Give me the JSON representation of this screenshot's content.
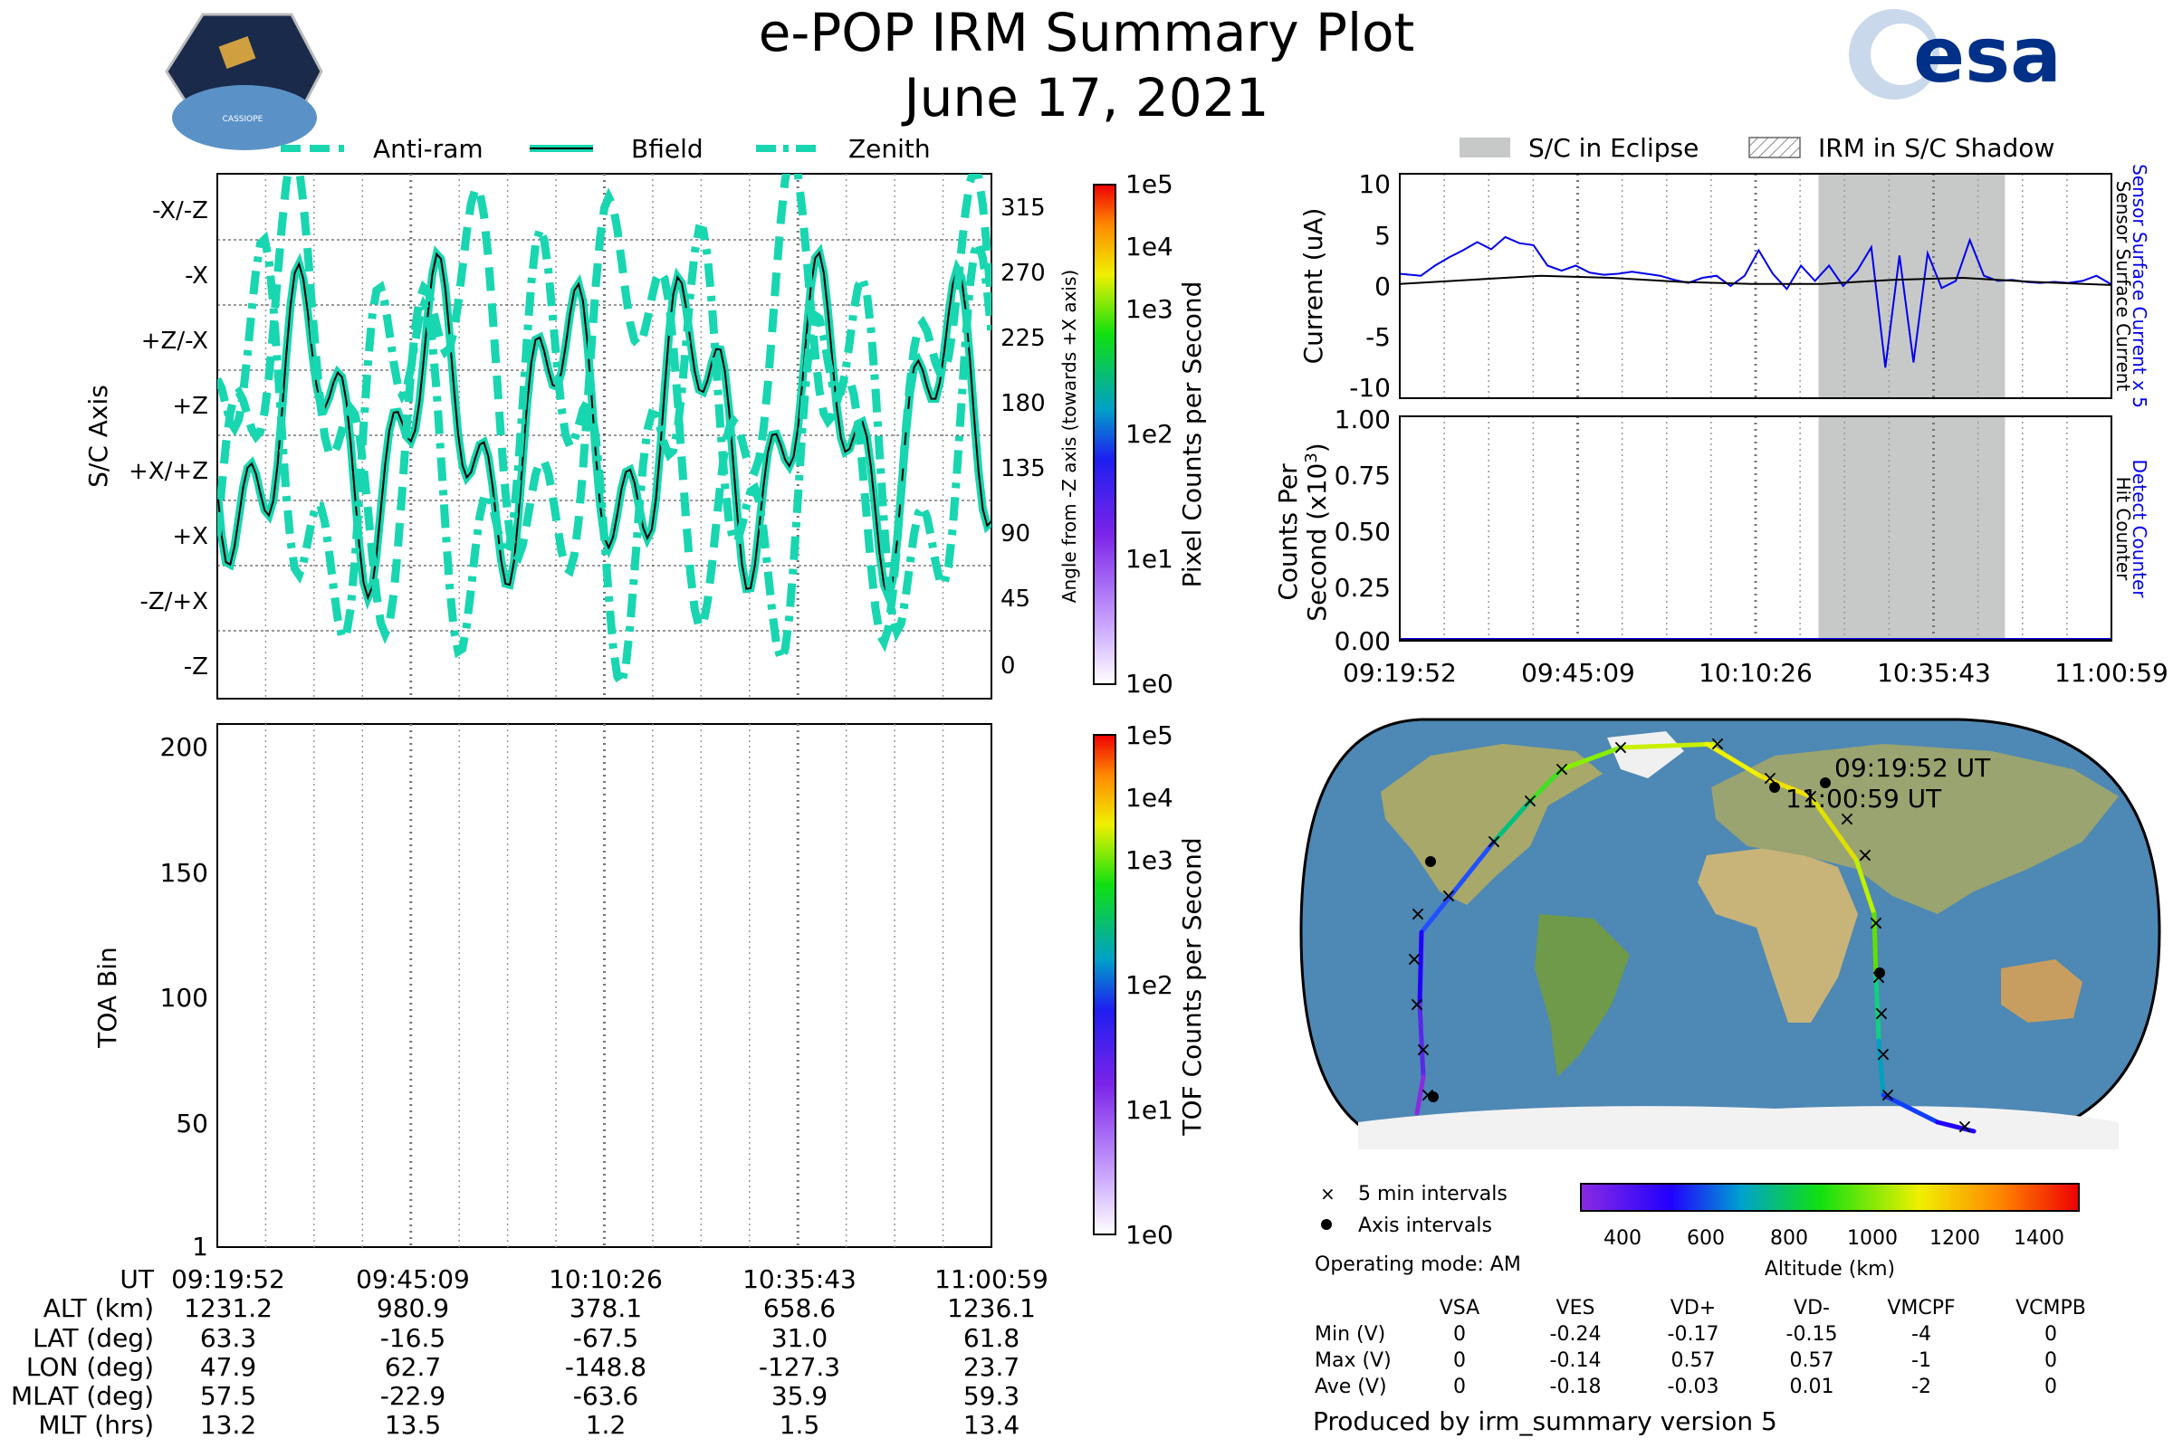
{
  "header": {
    "title": "e-POP IRM Summary Plot",
    "date": "June 17, 2021",
    "mission_logo_text": "CASSIOPE",
    "agency_logo": "esa"
  },
  "attitude_panel": {
    "legend": [
      "Anti-ram",
      "Bfield",
      "Zenith"
    ],
    "ylabel": "S/C Axis",
    "y_ticks": [
      "-X/-Z",
      "-X",
      "+Z/-X",
      "+Z",
      "+X/+Z",
      "+X",
      "-Z/+X",
      "-Z"
    ],
    "y2_ticks": [
      "315",
      "270",
      "225",
      "180",
      "135",
      "90",
      "45",
      "0"
    ],
    "y2label": "Angle from -Z axis (towards +X axis)",
    "colorbar_label": "Pixel Counts per Second",
    "colorbar_ticks": [
      "1e5",
      "1e4",
      "1e3",
      "1e2",
      "1e1",
      "1e0"
    ]
  },
  "toa_panel": {
    "ylabel": "TOA Bin",
    "y_ticks": [
      "200",
      "150",
      "100",
      "50",
      "1"
    ],
    "colorbar_label": "TOF Counts per Second",
    "colorbar_ticks": [
      "1e5",
      "1e4",
      "1e3",
      "1e2",
      "1e1",
      "1e0"
    ]
  },
  "time_table": {
    "row_labels": [
      "UT",
      "ALT (km)",
      "LAT (deg)",
      "LON (deg)",
      "MLAT (deg)",
      "MLT (hrs)"
    ],
    "columns": [
      [
        "09:19:52",
        "1231.2",
        "63.3",
        "47.9",
        "57.5",
        "13.2"
      ],
      [
        "09:45:09",
        "980.9",
        "-16.5",
        "62.7",
        "-22.9",
        "13.5"
      ],
      [
        "10:10:26",
        "378.1",
        "-67.5",
        "-148.8",
        "-63.6",
        "1.2"
      ],
      [
        "10:35:43",
        "658.6",
        "31.0",
        "-127.3",
        "35.9",
        "1.5"
      ],
      [
        "11:00:59",
        "1236.1",
        "61.8",
        "23.7",
        "59.3",
        "13.4"
      ]
    ]
  },
  "current_panel": {
    "legend": [
      "S/C in Eclipse",
      "IRM in S/C Shadow"
    ],
    "ylabel": "Current (uA)",
    "y_ticks": [
      "10",
      "5",
      "0",
      "-5",
      "-10"
    ],
    "right_label_blue": "Sensor Surface Current x 5",
    "right_label_black": "Sensor Surface Current"
  },
  "counts_panel": {
    "ylabel_line1": "Counts Per",
    "ylabel_line2": "Second (x10",
    "ylabel_sup": "3",
    "ylabel_close": ")",
    "y_ticks": [
      "1.00",
      "0.75",
      "0.50",
      "0.25",
      "0.00"
    ],
    "x_ticks": [
      "09:19:52",
      "09:45:09",
      "10:10:26",
      "10:35:43",
      "11:00:59"
    ],
    "right_label_blue": "Detect Counter",
    "right_label_black": "Hit Counter"
  },
  "map": {
    "start_label": "09:19:52 UT",
    "end_label": "11:00:59 UT",
    "legend_5min": "5 min intervals",
    "legend_axis": "Axis intervals",
    "colorbar_ticks": [
      "400",
      "600",
      "800",
      "1000",
      "1200",
      "1400"
    ],
    "colorbar_label": "Altitude (km)"
  },
  "operating_mode": "Operating mode: AM",
  "voltage_table": {
    "headers": [
      "VSA",
      "VES",
      "VD+",
      "VD-",
      "VMCPF",
      "VCMPB"
    ],
    "rows": [
      {
        "label": "Min (V)",
        "values": [
          "0",
          "-0.24",
          "-0.17",
          "-0.15",
          "-4",
          "0"
        ]
      },
      {
        "label": "Max (V)",
        "values": [
          "0",
          "-0.14",
          "0.57",
          "0.57",
          "-1",
          "0"
        ]
      },
      {
        "label": "Ave (V)",
        "values": [
          "0",
          "-0.18",
          "-0.03",
          "0.01",
          "-2",
          "0"
        ]
      }
    ]
  },
  "footer": "Produced by irm_summary version 5",
  "colors": {
    "teal": "#18d6b0",
    "eclipse_gray": "#c7c9c8",
    "current_blue": "#0000ee",
    "esa_navy": "#003087",
    "ocean": "#4e88b4"
  },
  "chart_data": [
    {
      "type": "line",
      "name": "attitude",
      "x_range_ut": [
        "09:19:52",
        "11:00:59"
      ],
      "ylim": [
        -15,
        345
      ],
      "series": [
        {
          "name": "Anti-ram",
          "style": "dashed"
        },
        {
          "name": "Bfield",
          "style": "solid"
        },
        {
          "name": "Zenith",
          "style": "dash-dot"
        }
      ]
    },
    {
      "type": "heatmap",
      "name": "toa",
      "ylim": [
        1,
        210
      ],
      "values": []
    },
    {
      "type": "line",
      "name": "current",
      "ylabel": "Current (uA)",
      "ylim": [
        -11,
        11
      ],
      "eclipse_minutes": [
        59.5,
        86
      ],
      "series": [
        {
          "name": "Sensor Surface Current x 5",
          "color": "#0000ee",
          "x_minutes": [
            0,
            3,
            5,
            7,
            9,
            11,
            13,
            15,
            17,
            19,
            21,
            23,
            25,
            27,
            29,
            31,
            33,
            35,
            37,
            39,
            41,
            43,
            45,
            47,
            49,
            51,
            53,
            55,
            57,
            59,
            61,
            63,
            65,
            67,
            69,
            71,
            73,
            75,
            77,
            79,
            81,
            83,
            85,
            87,
            89,
            91,
            93,
            95,
            97,
            99,
            101
          ],
          "y": [
            1.2,
            1.0,
            2.0,
            2.8,
            3.5,
            4.3,
            3.6,
            4.8,
            4.2,
            4.0,
            2.0,
            1.5,
            2.0,
            1.3,
            1.1,
            1.2,
            1.4,
            1.2,
            1.0,
            0.6,
            0.3,
            0.8,
            1.0,
            0.0,
            1.0,
            3.5,
            1.2,
            -0.3,
            2.0,
            0.5,
            2.0,
            0.0,
            1.5,
            3.8,
            -8.0,
            3.0,
            -7.5,
            3.2,
            -0.2,
            0.5,
            4.5,
            1.0,
            0.5,
            0.6,
            0.4,
            0.3,
            0.4,
            0.3,
            0.5,
            1.0,
            0.2
          ]
        },
        {
          "name": "Sensor Surface Current",
          "color": "#000000",
          "x_minutes": [
            0,
            10,
            20,
            30,
            40,
            50,
            60,
            70,
            80,
            90,
            101
          ],
          "y": [
            0.2,
            0.6,
            1.0,
            0.8,
            0.4,
            0.2,
            0.2,
            0.6,
            0.8,
            0.4,
            0.1
          ]
        }
      ]
    },
    {
      "type": "line",
      "name": "counts",
      "ylim": [
        0,
        1
      ],
      "series": [
        {
          "name": "Detect Counter",
          "color": "#0000ee",
          "y": [
            0,
            0
          ]
        },
        {
          "name": "Hit Counter",
          "color": "#000000",
          "y": [
            0,
            0
          ]
        }
      ]
    }
  ]
}
